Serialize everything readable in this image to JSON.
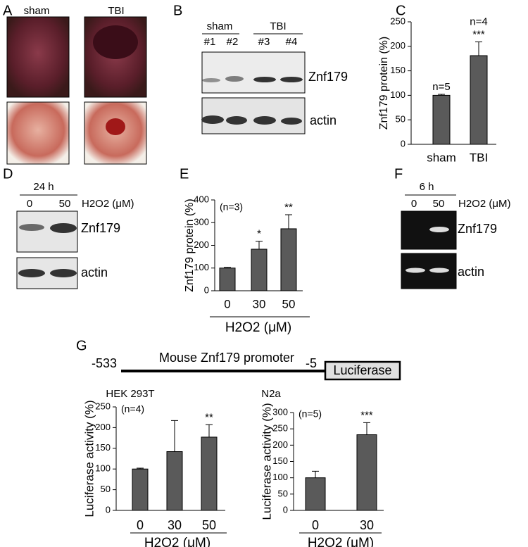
{
  "panel_labels": [
    "A",
    "B",
    "C",
    "D",
    "E",
    "F",
    "G"
  ],
  "panel_a": {
    "labels": [
      "sham",
      "TBI"
    ]
  },
  "panel_b": {
    "groups": [
      "sham",
      "TBI"
    ],
    "lanes": [
      "#1",
      "#2",
      "#3",
      "#4"
    ],
    "bands": [
      "Znf179",
      "actin"
    ]
  },
  "panel_d": {
    "time": "24 h",
    "doses": [
      0,
      50
    ],
    "treatment": "H2O2 (μM)",
    "bands": [
      "Znf179",
      "actin"
    ]
  },
  "panel_f": {
    "time": "6 h",
    "doses": [
      0,
      50
    ],
    "treatment": "H2O2 (μM)",
    "bands": [
      "Znf179",
      "actin"
    ]
  },
  "panel_g": {
    "start": "-533",
    "promoter": "Mouse Znf179 promoter",
    "end": "-5",
    "reporter": "Luciferase"
  },
  "chart_data": [
    {
      "type": "bar",
      "y_label": "Znf179 protein (%)",
      "categories": [
        "sham",
        "TBI"
      ],
      "values": [
        100,
        181
      ],
      "errors": [
        2,
        28
      ],
      "sample_sizes": [
        "n=5",
        "n=4"
      ],
      "significance": [
        null,
        "***"
      ],
      "ylim": [
        0,
        250
      ],
      "yticks": [
        0,
        50,
        100,
        150,
        200,
        250
      ],
      "color": "#5a5a5a"
    },
    {
      "type": "bar",
      "y_label": "Znf179 protein (%)",
      "x_label": "H2O2 (μM)",
      "note": "(n=3)",
      "categories": [
        "0",
        "30",
        "50"
      ],
      "values": [
        100,
        183,
        273
      ],
      "errors": [
        3,
        35,
        62
      ],
      "significance": [
        null,
        "*",
        "**"
      ],
      "ylim": [
        0,
        400
      ],
      "yticks": [
        0,
        100,
        200,
        300,
        400
      ],
      "color": "#5a5a5a"
    },
    {
      "type": "bar",
      "title": "HEK 293T",
      "y_label": "Luciferase activity (%)",
      "x_label": "H2O2 (μM)",
      "note": "(n=4)",
      "categories": [
        "0",
        "30",
        "50"
      ],
      "values": [
        100,
        142,
        177
      ],
      "errors": [
        2,
        75,
        30
      ],
      "significance": [
        null,
        null,
        "**"
      ],
      "ylim": [
        0,
        250
      ],
      "yticks": [
        0,
        50,
        100,
        150,
        200,
        250
      ],
      "color": "#5a5a5a"
    },
    {
      "type": "bar",
      "title": "N2a",
      "y_label": "Luciferase activity (%)",
      "x_label": "H2O2 (μM)",
      "note": "(n=5)",
      "categories": [
        "0",
        "30"
      ],
      "values": [
        100,
        232
      ],
      "errors": [
        20,
        37
      ],
      "significance": [
        null,
        "***"
      ],
      "ylim": [
        0,
        300
      ],
      "yticks": [
        0,
        50,
        100,
        150,
        200,
        250,
        300
      ],
      "color": "#5a5a5a"
    }
  ]
}
